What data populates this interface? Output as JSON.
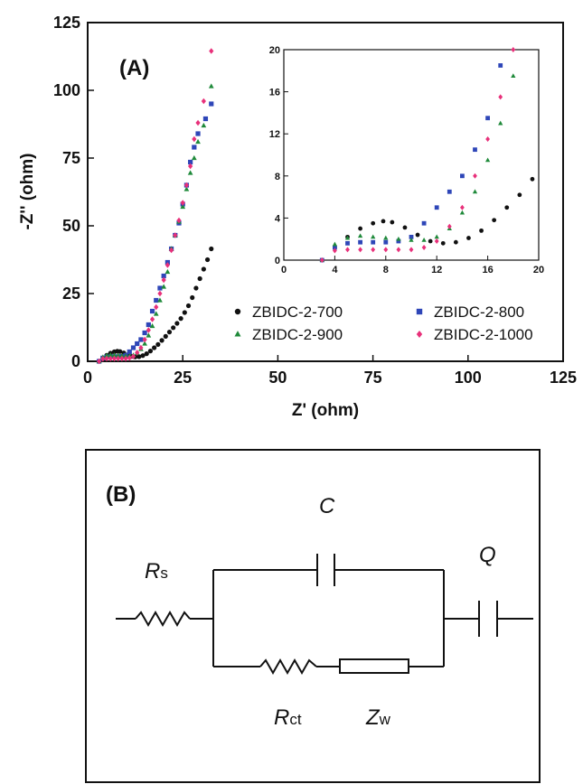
{
  "chart_data": [
    {
      "panel_label": "(A)",
      "type": "scatter",
      "xlabel": "Z' (ohm)",
      "ylabel": "-Z'' (ohm)",
      "xlim": [
        0,
        125
      ],
      "ylim": [
        0,
        125
      ],
      "xticks": [
        "0",
        "25",
        "50",
        "75",
        "100",
        "125"
      ],
      "yticks": [
        "0",
        "25",
        "50",
        "75",
        "100",
        "125"
      ],
      "legend_position": "bottom-right",
      "series": [
        {
          "name": "ZBIDC-2-700",
          "color": "#111111",
          "marker": "circle",
          "points": [
            [
              3,
              0
            ],
            [
              4,
              1.2
            ],
            [
              5,
              2.2
            ],
            [
              6,
              3
            ],
            [
              7,
              3.5
            ],
            [
              7.8,
              3.7
            ],
            [
              8.5,
              3.6
            ],
            [
              9.5,
              3.1
            ],
            [
              10.5,
              2.4
            ],
            [
              11.5,
              1.8
            ],
            [
              12.5,
              1.6
            ],
            [
              13.5,
              1.7
            ],
            [
              14.5,
              2.1
            ],
            [
              15.5,
              2.8
            ],
            [
              16.5,
              3.8
            ],
            [
              17.5,
              5
            ],
            [
              18.5,
              6.2
            ],
            [
              19.5,
              7.7
            ],
            [
              20.5,
              9.2
            ],
            [
              21.5,
              10.8
            ],
            [
              22.5,
              12.4
            ],
            [
              23.5,
              14
            ],
            [
              24.5,
              15.8
            ],
            [
              25.5,
              18
            ],
            [
              26.5,
              20.5
            ],
            [
              27.5,
              23.5
            ],
            [
              28.5,
              27
            ],
            [
              29.5,
              30.5
            ],
            [
              30.5,
              34
            ],
            [
              31.5,
              37.5
            ],
            [
              32.5,
              41.5
            ]
          ]
        },
        {
          "name": "ZBIDC-2-800",
          "color": "#2e46b8",
          "marker": "square",
          "points": [
            [
              3,
              0
            ],
            [
              4,
              1.2
            ],
            [
              5,
              1.6
            ],
            [
              6,
              1.7
            ],
            [
              7,
              1.7
            ],
            [
              8,
              1.7
            ],
            [
              9,
              1.8
            ],
            [
              10,
              2.2
            ],
            [
              11,
              3.5
            ],
            [
              12,
              5
            ],
            [
              13,
              6.5
            ],
            [
              14,
              8
            ],
            [
              15,
              10.5
            ],
            [
              16,
              13.5
            ],
            [
              17,
              18.5
            ],
            [
              18,
              22.5
            ],
            [
              19,
              27
            ],
            [
              20,
              31.5
            ],
            [
              21,
              36.5
            ],
            [
              22,
              41.5
            ],
            [
              23,
              46.5
            ],
            [
              24,
              51
            ],
            [
              25,
              58
            ],
            [
              26,
              65
            ],
            [
              27,
              73.5
            ],
            [
              28,
              79
            ],
            [
              29,
              84
            ],
            [
              31,
              89.5
            ],
            [
              32.5,
              95
            ]
          ]
        },
        {
          "name": "ZBIDC-2-900",
          "color": "#1f8a3a",
          "marker": "triangle",
          "points": [
            [
              3,
              0
            ],
            [
              4,
              1.5
            ],
            [
              5,
              2.1
            ],
            [
              6,
              2.3
            ],
            [
              7,
              2.2
            ],
            [
              8,
              2.1
            ],
            [
              9,
              2
            ],
            [
              10,
              1.9
            ],
            [
              11,
              1.9
            ],
            [
              12,
              2.2
            ],
            [
              13,
              3
            ],
            [
              14,
              4.5
            ],
            [
              15,
              6.5
            ],
            [
              16,
              9.5
            ],
            [
              17,
              13
            ],
            [
              18,
              17.5
            ],
            [
              19,
              22.5
            ],
            [
              20,
              27.5
            ],
            [
              21,
              33
            ],
            [
              22,
              41.5
            ],
            [
              23,
              46.5
            ],
            [
              24,
              51.5
            ],
            [
              25,
              57
            ],
            [
              26,
              63.5
            ],
            [
              27,
              69.5
            ],
            [
              28,
              75
            ],
            [
              29,
              81
            ],
            [
              30.5,
              87
            ],
            [
              32.5,
              101.5
            ]
          ]
        },
        {
          "name": "ZBIDC-2-1000",
          "color": "#e8307a",
          "marker": "diamond",
          "points": [
            [
              3,
              0
            ],
            [
              4,
              0.9
            ],
            [
              5,
              1
            ],
            [
              6,
              1
            ],
            [
              7,
              1
            ],
            [
              8,
              1
            ],
            [
              9,
              1
            ],
            [
              10,
              1
            ],
            [
              11,
              1.2
            ],
            [
              12,
              1.8
            ],
            [
              13,
              3.2
            ],
            [
              14,
              5
            ],
            [
              15,
              8
            ],
            [
              16,
              11.5
            ],
            [
              17,
              15.5
            ],
            [
              18,
              20
            ],
            [
              19,
              25
            ],
            [
              20,
              30
            ],
            [
              21,
              35.5
            ],
            [
              22,
              41
            ],
            [
              23,
              46.5
            ],
            [
              24,
              52
            ],
            [
              25,
              58.5
            ],
            [
              26,
              65
            ],
            [
              27,
              72
            ],
            [
              28,
              82
            ],
            [
              29,
              88
            ],
            [
              30.5,
              96
            ],
            [
              32.5,
              114.5
            ]
          ]
        }
      ]
    },
    {
      "type": "scatter",
      "inset_of": "(A)",
      "xlim": [
        0,
        20
      ],
      "ylim": [
        0,
        20
      ],
      "xticks": [
        "0",
        "4",
        "8",
        "12",
        "16",
        "20"
      ],
      "yticks": [
        "0",
        "4",
        "8",
        "12",
        "16",
        "20"
      ]
    }
  ],
  "circuit": {
    "panel_label": "(B)",
    "labels": {
      "rs_main": "R",
      "rs_sub": "s",
      "c": "C",
      "q": "Q",
      "rct_main": "R",
      "rct_sub": "ct",
      "zw_main": "Z",
      "zw_sub": "w"
    }
  }
}
